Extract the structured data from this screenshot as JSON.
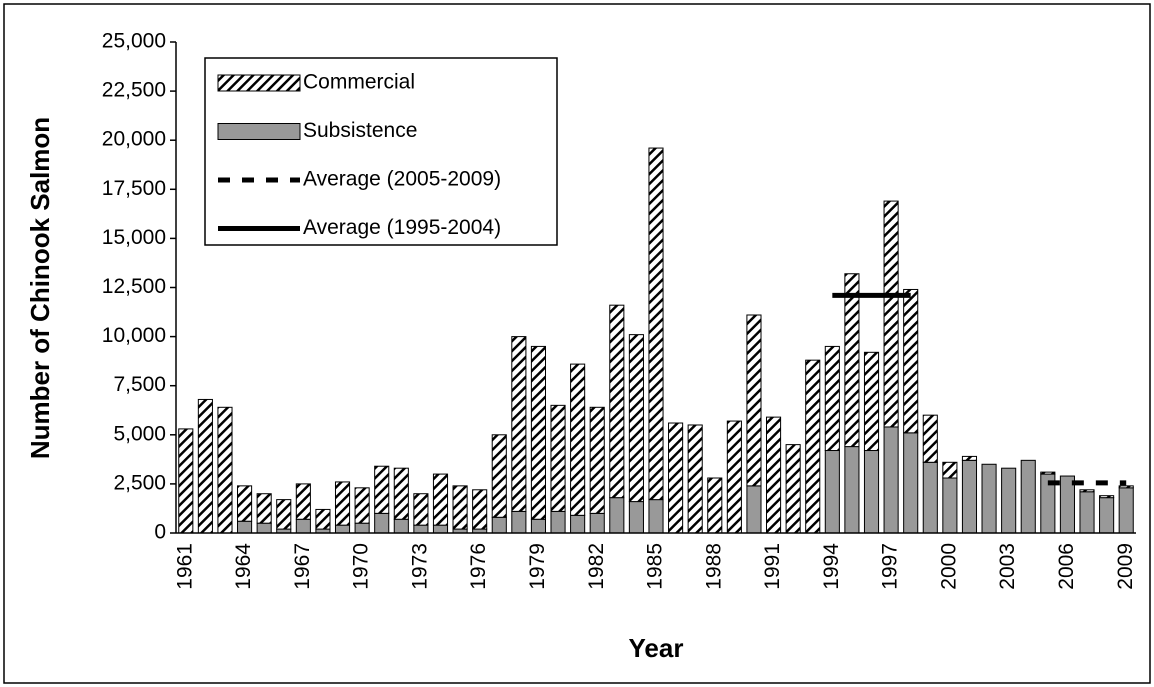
{
  "chart_data": {
    "type": "bar",
    "stacked": true,
    "y_label": "Number of Chinook Salmon",
    "x_label": "Year",
    "categories": [
      "1961",
      null,
      null,
      "1964",
      null,
      null,
      "1967",
      null,
      null,
      "1970",
      null,
      null,
      "1973",
      null,
      null,
      "1976",
      null,
      null,
      "1979",
      null,
      null,
      "1982",
      null,
      null,
      "1985",
      null,
      null,
      "1988",
      null,
      null,
      "1991",
      null,
      null,
      "1994",
      null,
      null,
      "1997",
      null,
      null,
      "2000",
      null,
      null,
      "2003",
      null,
      null,
      "2006",
      null,
      null,
      "2009"
    ],
    "series": [
      {
        "name": "Commercial",
        "type": "bar",
        "pattern": "hatch",
        "color": "#000000",
        "values": [
          5300,
          6800,
          6400,
          1800,
          1500,
          1500,
          1800,
          1000,
          2200,
          1800,
          2400,
          2600,
          1600,
          2600,
          2200,
          2000,
          4200,
          8900,
          8800,
          5400,
          7700,
          5400,
          9800,
          8500,
          17900,
          5600,
          5500,
          2800,
          5700,
          8700,
          5900,
          4500,
          8800,
          5300,
          8800,
          5000,
          11500,
          7300,
          2400,
          800,
          200,
          null,
          null,
          null,
          100,
          null,
          100,
          100,
          100
        ]
      },
      {
        "name": "Subsistence",
        "type": "bar",
        "pattern": "solid",
        "color": "#999999",
        "values": [
          null,
          null,
          null,
          600,
          500,
          200,
          700,
          200,
          400,
          500,
          1000,
          700,
          400,
          400,
          200,
          200,
          800,
          1100,
          700,
          1100,
          900,
          1000,
          1800,
          1600,
          1700,
          null,
          null,
          null,
          null,
          2400,
          null,
          null,
          null,
          4200,
          4400,
          4200,
          5400,
          5100,
          3600,
          2800,
          3700,
          3500,
          3300,
          3700,
          3000,
          2900,
          2100,
          1800,
          2300
        ]
      },
      {
        "name": "Average (2005-2009)",
        "type": "line",
        "dash": "dashed",
        "color": "#000000",
        "values": [
          null,
          null,
          null,
          null,
          null,
          null,
          null,
          null,
          null,
          null,
          null,
          null,
          null,
          null,
          null,
          null,
          null,
          null,
          null,
          null,
          null,
          null,
          null,
          null,
          null,
          null,
          null,
          null,
          null,
          null,
          null,
          null,
          null,
          null,
          null,
          null,
          null,
          null,
          null,
          null,
          null,
          null,
          null,
          null,
          2550,
          2550,
          2550,
          2550,
          2550
        ]
      },
      {
        "name": "Average (1995-2004)",
        "type": "line",
        "dash": "solid",
        "color": "#000000",
        "values": [
          null,
          null,
          null,
          null,
          null,
          null,
          null,
          null,
          null,
          null,
          null,
          null,
          null,
          null,
          null,
          null,
          null,
          null,
          null,
          null,
          null,
          null,
          null,
          null,
          null,
          null,
          null,
          null,
          null,
          null,
          null,
          null,
          null,
          12100,
          12100,
          12100,
          12100,
          12100,
          null,
          null,
          null,
          null,
          null,
          null,
          null,
          null,
          null,
          null,
          null
        ]
      }
    ],
    "ylim": [
      0,
      25000
    ],
    "yticks": [
      0,
      {
        "value": 2500,
        "label": "2,500"
      },
      {
        "value": 5000,
        "label": "5,000"
      },
      {
        "value": 7500,
        "label": "7,500"
      },
      {
        "value": 10000,
        "label": "10,000"
      },
      {
        "value": 12500,
        "label": "12,500"
      },
      {
        "value": 15000,
        "label": "15,000"
      },
      {
        "value": 17500,
        "label": "17,500"
      },
      {
        "value": 20000,
        "label": "20,000"
      },
      {
        "value": 22500,
        "label": "22,500"
      },
      {
        "value": 25000,
        "label": "25,000"
      }
    ],
    "grid": false,
    "legend": "top-left"
  }
}
